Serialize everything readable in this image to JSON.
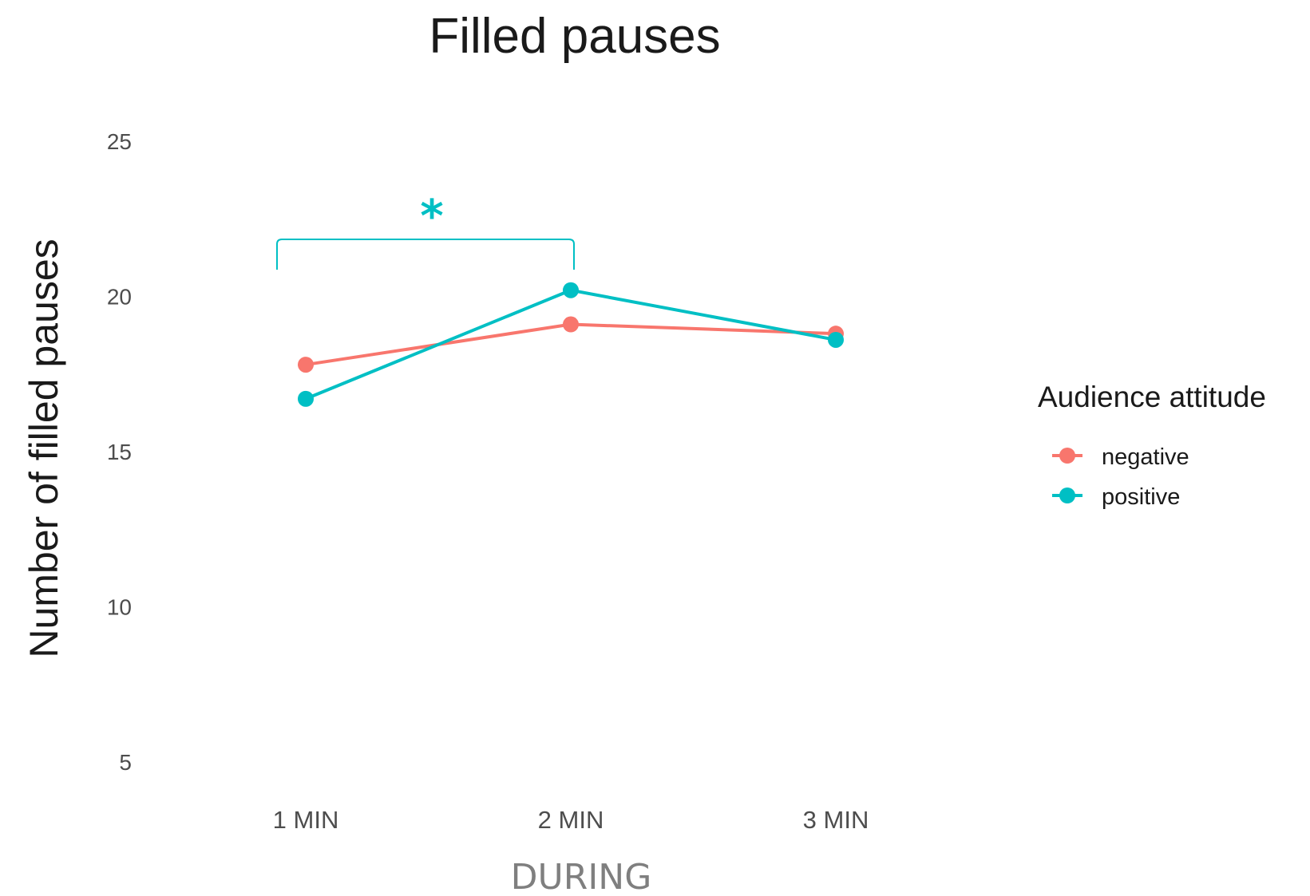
{
  "chart_data": {
    "type": "line",
    "title": "Filled pauses",
    "xlabel": "DURING",
    "ylabel": "Number of filled pauses",
    "categories": [
      "1 MIN",
      "2 MIN",
      "3 MIN"
    ],
    "y_ticks": [
      "5",
      "10",
      "15",
      "20",
      "25"
    ],
    "ylim": [
      4,
      26
    ],
    "grid": false,
    "legend": {
      "title": "Audience attitude",
      "position": "right"
    },
    "series": [
      {
        "name": "negative",
        "color": "#F8766D",
        "values": [
          17.8,
          19.1,
          18.8
        ]
      },
      {
        "name": "positive",
        "color": "#00BFC4",
        "values": [
          16.7,
          20.2,
          18.6
        ]
      }
    ],
    "annotations": [
      {
        "text": "*",
        "from": "1 MIN",
        "to": "2 MIN",
        "color": "#00BFC4"
      }
    ]
  }
}
